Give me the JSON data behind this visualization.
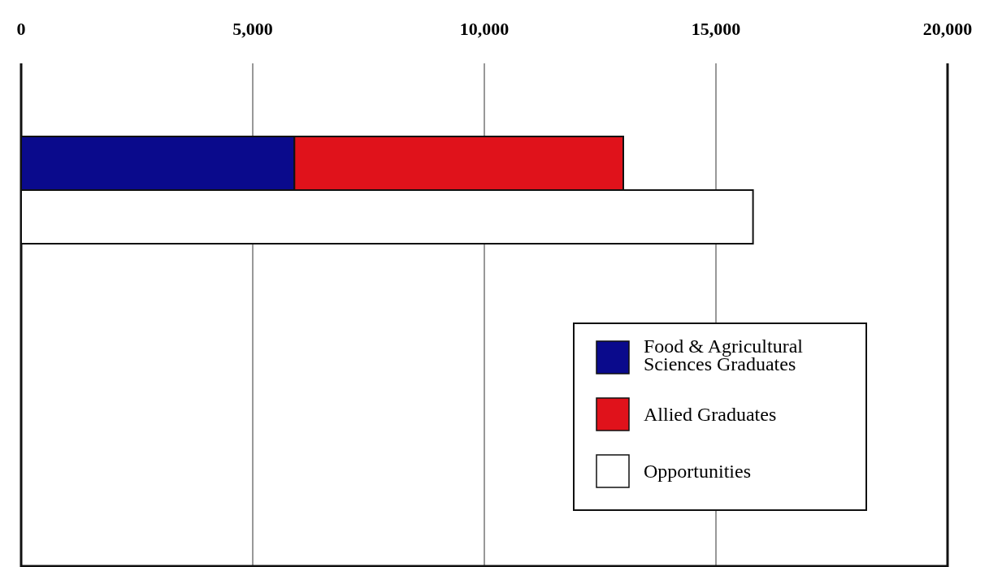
{
  "chart_data": {
    "type": "bar",
    "orientation": "horizontal",
    "stacked": true,
    "categories": [
      null,
      null
    ],
    "series": [
      {
        "name": "Food & Agricultural Sciences Graduates",
        "color": "#0a0a8c",
        "values": [
          5900,
          null
        ]
      },
      {
        "name": "Allied Graduates",
        "color": "#e0121b",
        "values": [
          7100,
          null
        ]
      },
      {
        "name": "Opportunities",
        "color": "#ffffff",
        "values": [
          null,
          15800
        ]
      }
    ],
    "xlim": [
      0,
      20000
    ],
    "xticks": [
      {
        "value": 0,
        "label": "0"
      },
      {
        "value": 5000,
        "label": "5,000"
      },
      {
        "value": 10000,
        "label": "10,000"
      },
      {
        "value": 15000,
        "label": "15,000"
      },
      {
        "value": 20000,
        "label": "20,000"
      }
    ],
    "grid": "x",
    "legend": "bottom right",
    "tick_labels": "x"
  }
}
